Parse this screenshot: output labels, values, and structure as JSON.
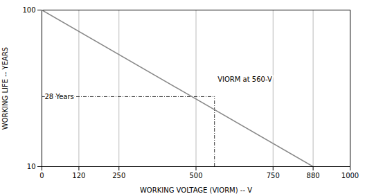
{
  "chart_data": {
    "type": "line",
    "log": "y",
    "x_label": "WORKING VOLTAGE (VIORM) -- V",
    "y_label": "WORKING LIFE -- YEARS",
    "x": [
      0,
      880
    ],
    "values": [
      100,
      10
    ],
    "color": "#888888",
    "xlim": [
      0,
      1000
    ],
    "xticks": [
      0,
      120,
      250,
      500,
      750,
      880,
      1000
    ],
    "ylim": [
      10,
      100
    ],
    "yticks": [
      10,
      100
    ],
    "grid": true,
    "annotations": [
      {
        "text": "28 Years",
        "x": 560,
        "y": 28,
        "line_style": "dashdot"
      },
      {
        "text": "VIORM at 560-V",
        "x": 570,
        "y": 36
      }
    ]
  }
}
